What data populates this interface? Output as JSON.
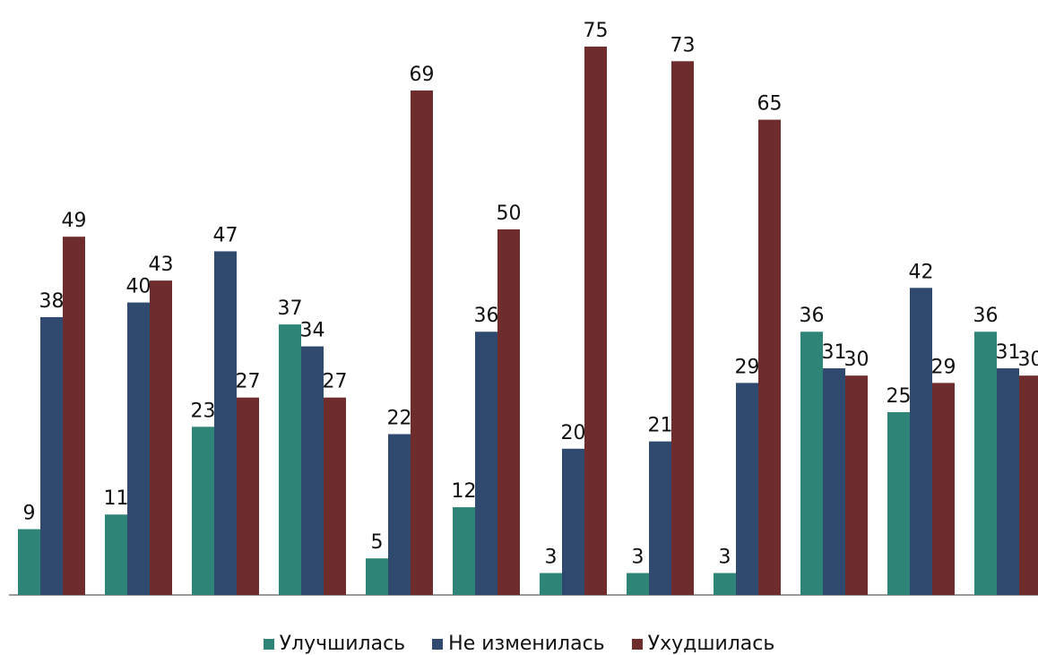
{
  "chart_data": {
    "type": "bar",
    "categories": [
      "",
      "",
      "",
      "",
      "",
      "",
      "",
      "",
      "",
      "",
      "",
      ""
    ],
    "series": [
      {
        "name": "Улучшилась",
        "color": "#2e8577",
        "values": [
          9,
          11,
          23,
          37,
          5,
          12,
          3,
          3,
          3,
          36,
          25,
          36
        ]
      },
      {
        "name": "Не изменилась",
        "color": "#2f4a6e",
        "values": [
          38,
          40,
          47,
          34,
          22,
          36,
          20,
          21,
          29,
          31,
          42,
          31
        ]
      },
      {
        "name": "Ухудшилась",
        "color": "#6e2c2c",
        "values": [
          49,
          43,
          27,
          27,
          69,
          50,
          75,
          73,
          65,
          30,
          29,
          30
        ]
      }
    ],
    "ylim": [
      0,
      75
    ],
    "grid": false,
    "legend_position": "bottom",
    "data_labels": true
  }
}
